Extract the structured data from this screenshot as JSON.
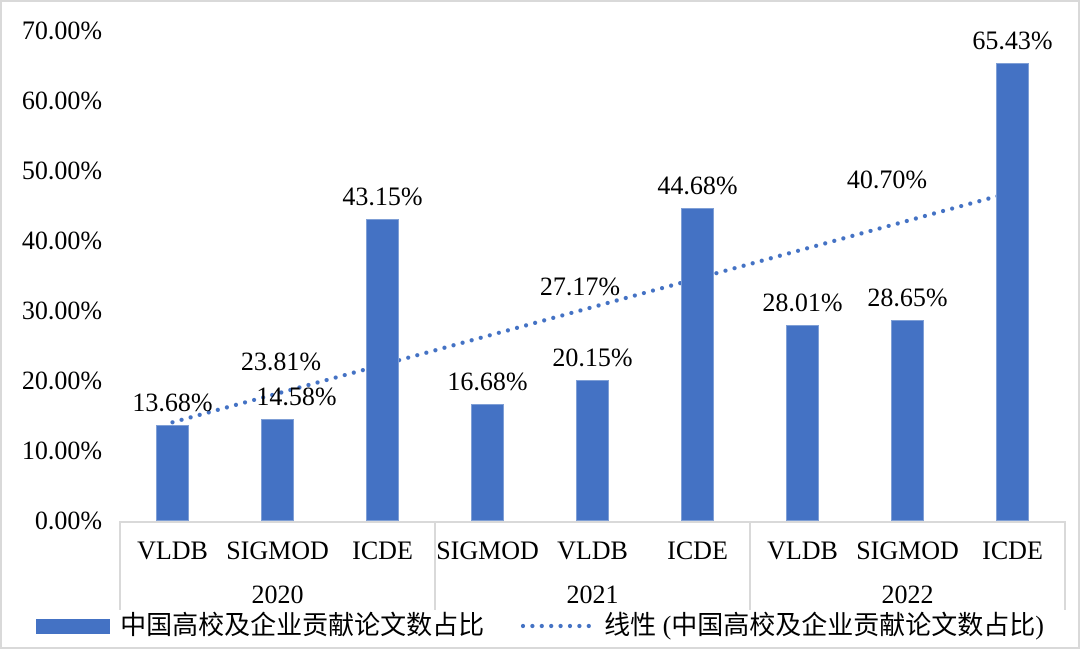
{
  "chart_data": {
    "type": "bar",
    "title": "",
    "xlabel": "",
    "ylabel": "",
    "unit": "%",
    "ylim": [
      0,
      70
    ],
    "grid": false,
    "legend_position": "bottom",
    "y_ticks": [
      {
        "label": "70.00%",
        "value": 70
      },
      {
        "label": "60.00%",
        "value": 60
      },
      {
        "label": "50.00%",
        "value": 50
      },
      {
        "label": "40.00%",
        "value": 40
      },
      {
        "label": "30.00%",
        "value": 30
      },
      {
        "label": "20.00%",
        "value": 20
      },
      {
        "label": "10.00%",
        "value": 10
      },
      {
        "label": "0.00%",
        "value": 0
      }
    ],
    "groups": [
      {
        "year": "2020",
        "items": [
          {
            "category": "VLDB",
            "value": 13.68,
            "label": "13.68%"
          },
          {
            "category": "SIGMOD",
            "value": 14.58,
            "label": "14.58%",
            "label_dx": 19
          },
          {
            "category": "ICDE",
            "value": 43.15,
            "label": "43.15%"
          }
        ]
      },
      {
        "year": "2021",
        "items": [
          {
            "category": "SIGMOD",
            "value": 16.68,
            "label": "16.68%"
          },
          {
            "category": "VLDB",
            "value": 20.15,
            "label": "20.15%"
          },
          {
            "category": "ICDE",
            "value": 44.68,
            "label": "44.68%"
          }
        ]
      },
      {
        "year": "2022",
        "items": [
          {
            "category": "VLDB",
            "value": 28.01,
            "label": "28.01%"
          },
          {
            "category": "SIGMOD",
            "value": 28.65,
            "label": "28.65%"
          },
          {
            "category": "ICDE",
            "value": 65.43,
            "label": "65.43%"
          }
        ]
      }
    ],
    "series_name": "中国高校及企业贡献论文数占比",
    "trendline": {
      "name": "线性 (中国高校及企业贡献论文数占比)",
      "style": "dotted",
      "start_value": 14.1,
      "end_value": 47.0,
      "labels": [
        {
          "text": "23.81%",
          "x": 279,
          "y": 360
        },
        {
          "text": "27.17%",
          "x": 578,
          "y": 285
        },
        {
          "text": "40.70%",
          "x": 885,
          "y": 178
        }
      ]
    },
    "legend": [
      {
        "marker": "bar-swatch",
        "label": "中国高校及企业贡献论文数占比"
      },
      {
        "marker": "dotted-line-swatch",
        "label": "线性 (中国高校及企业贡献论文数占比)"
      }
    ],
    "colors": {
      "bar": "#4472C4",
      "bar_border": "#7F9FD6",
      "trend": "#4472C4",
      "grid": "#D9D9D9",
      "text": "#000000"
    }
  }
}
